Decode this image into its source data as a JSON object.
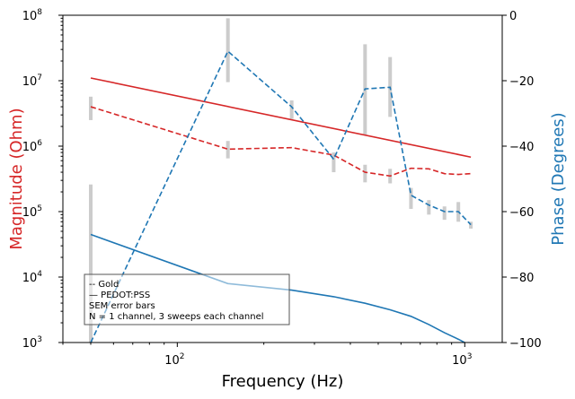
{
  "chart_data": {
    "type": "line",
    "xlabel": "Frequency (Hz)",
    "ylabel_left": "Magnitude (Ohm)",
    "ylabel_right": "Phase (Degrees)",
    "x_scale": "log",
    "y_left_scale": "log",
    "xlim": [
      40,
      1350
    ],
    "ylim_left": [
      1000,
      100000000
    ],
    "ylim_right": [
      -100,
      0
    ],
    "x_tick_labels": [
      "10",
      "10"
    ],
    "x_tick_superscripts": [
      "2",
      "3"
    ],
    "y_left_tick_labels": [
      "10",
      "10",
      "10",
      "10",
      "10",
      "10"
    ],
    "y_left_tick_superscripts": [
      "3",
      "4",
      "5",
      "6",
      "7",
      "8"
    ],
    "y_right_ticks": [
      "0",
      "−20",
      "−40",
      "−60",
      "−80",
      "−100"
    ],
    "legend_lines": [
      "-- Gold",
      "— PEDOT:PSS",
      "SEM error bars",
      "N = 1 channel, 3 sweeps each channel"
    ],
    "legend_placement": "bottom-left",
    "grid": false,
    "colors": {
      "magnitude": "#d62728",
      "phase": "#1f77b4",
      "error_bar": "#cccccc"
    },
    "series": [
      {
        "axis": "left",
        "color": "#d62728",
        "dash": "solid",
        "x": [
          50,
          1050
        ],
        "y": [
          11000000,
          680000
        ]
      },
      {
        "axis": "left",
        "color": "#d62728",
        "dash": "dashed",
        "x": [
          50,
          150,
          250,
          350,
          450,
          550,
          650,
          750,
          850,
          950,
          1050
        ],
        "y": [
          4000000,
          900000,
          950000,
          730000,
          400000,
          350000,
          460000,
          450000,
          380000,
          370000,
          380000
        ]
      },
      {
        "axis": "right",
        "color": "#1f77b4",
        "dash": "solid",
        "x": [
          50,
          150,
          250,
          350,
          450,
          550,
          650,
          750,
          850,
          950,
          1050
        ],
        "y": [
          -67,
          -82,
          -84,
          -86,
          -88,
          -90,
          -92,
          -94.5,
          -97,
          -99,
          -101
        ]
      },
      {
        "axis": "right",
        "color": "#1f77b4",
        "dash": "dashed",
        "x": [
          50,
          150,
          250,
          350,
          450,
          550,
          650,
          750,
          850,
          950,
          1050
        ],
        "y": [
          -100,
          -11,
          -28,
          -44,
          -22.5,
          -22,
          -55,
          -58,
          -60,
          -60,
          -64
        ]
      }
    ],
    "error_bars": [
      {
        "axis": "left",
        "x": 50,
        "low": 700,
        "high": 260000
      },
      {
        "axis": "left",
        "x": 50,
        "low": 2500000,
        "high": 5700000
      },
      {
        "axis": "left",
        "x": 150,
        "low": 9500000,
        "high": 90000000
      },
      {
        "axis": "left",
        "x": 150,
        "low": 650000,
        "high": 1200000
      },
      {
        "axis": "left",
        "x": 250,
        "low": 2600000,
        "high": 5000000
      },
      {
        "axis": "left",
        "x": 350,
        "low": 400000,
        "high": 800000
      },
      {
        "axis": "left",
        "x": 450,
        "low": 1500000,
        "high": 36000000
      },
      {
        "axis": "left",
        "x": 450,
        "low": 280000,
        "high": 520000
      },
      {
        "axis": "left",
        "x": 550,
        "low": 2800000,
        "high": 23000000
      },
      {
        "axis": "left",
        "x": 550,
        "low": 270000,
        "high": 450000
      },
      {
        "axis": "left",
        "x": 650,
        "low": 110000,
        "high": 230000
      },
      {
        "axis": "left",
        "x": 750,
        "low": 90000,
        "high": 150000
      },
      {
        "axis": "left",
        "x": 850,
        "low": 75000,
        "high": 120000
      },
      {
        "axis": "left",
        "x": 950,
        "low": 70000,
        "high": 140000
      },
      {
        "axis": "left",
        "x": 1050,
        "low": 55000,
        "high": 70000
      }
    ]
  }
}
